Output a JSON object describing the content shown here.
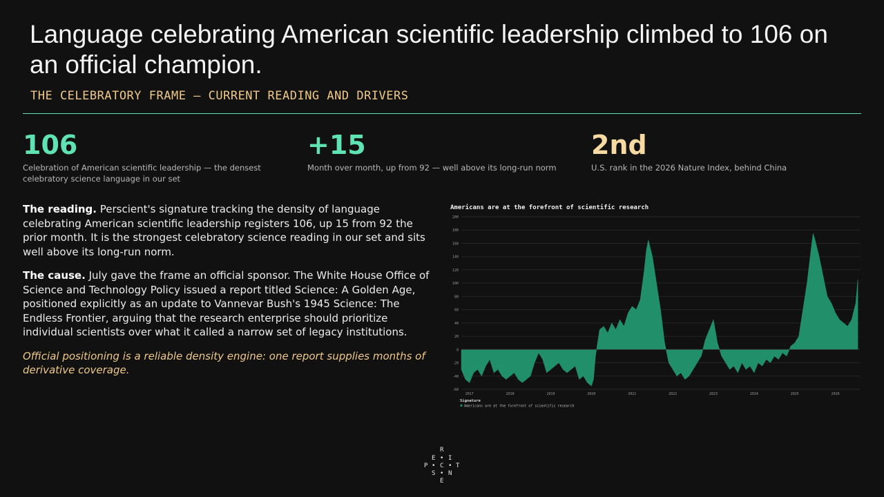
{
  "header": {
    "title": "Language celebrating American scientific leadership climbed to 106 on an official champion.",
    "subtitle": "THE CELEBRATORY FRAME — CURRENT READING AND DRIVERS"
  },
  "stats": [
    {
      "value": "106",
      "description": "Celebration of American scientific leadership — the densest celebratory science language in our set",
      "color": "#5fe3b3"
    },
    {
      "value": "+15",
      "description": "Month over month, up from 92 — well above its long-run norm",
      "color": "#5fe3b3"
    },
    {
      "value": "2nd",
      "description": "U.S. rank in the 2026 Nature Index, behind China",
      "color": "#f7d9a2"
    }
  ],
  "body": {
    "p1_lead": "The reading.",
    "p1_text": " Perscient's signature tracking the density of language celebrating American scientific leadership registers 106, up 15 from 92 the prior month. It is the strongest celebratory science reading in our set and sits well above its long-run norm.",
    "p2_lead": "The cause.",
    "p2_text": " July gave the frame an official sponsor. The White House Office of Science and Technology Policy issued a report titled Science: A Golden Age, positioned explicitly as an update to Vannevar Bush's 1945 Science: The Endless Frontier, arguing that the research enterprise should prioritize individual scientists over what it called a narrow set of legacy institutions.",
    "kicker": "Official positioning is a reliable density engine: one report supplies months of derivative coverage."
  },
  "chart_data": {
    "type": "area",
    "title": "Americans are at the forefront of scientific research",
    "xlabel": "",
    "ylabel": "",
    "ylim": [
      -60,
      200
    ],
    "yticks": [
      -60,
      -40,
      -20,
      0,
      20,
      40,
      60,
      80,
      100,
      120,
      140,
      160,
      180,
      200
    ],
    "xlim": [
      2016.8,
      2026.6
    ],
    "xticks": [
      "2017",
      "2018",
      "2019",
      "2020",
      "2021",
      "2022",
      "2023",
      "2024",
      "2025",
      "2026"
    ],
    "grid": true,
    "color": "#21906a",
    "legend_title": "Signature",
    "legend_placement": "bottom-left",
    "series": [
      {
        "name": "Americans are at the forefront of scientific research",
        "x": [
          2016.8,
          2016.9,
          2017.0,
          2017.1,
          2017.2,
          2017.3,
          2017.4,
          2017.5,
          2017.6,
          2017.7,
          2017.8,
          2017.9,
          2018.0,
          2018.1,
          2018.2,
          2018.3,
          2018.4,
          2018.5,
          2018.6,
          2018.7,
          2018.8,
          2018.9,
          2019.0,
          2019.1,
          2019.2,
          2019.3,
          2019.4,
          2019.5,
          2019.6,
          2019.7,
          2019.8,
          2019.9,
          2020.0,
          2020.05,
          2020.1,
          2020.2,
          2020.3,
          2020.4,
          2020.5,
          2020.6,
          2020.7,
          2020.8,
          2020.9,
          2021.0,
          2021.1,
          2021.2,
          2021.3,
          2021.35,
          2021.4,
          2021.5,
          2021.6,
          2021.7,
          2021.8,
          2021.9,
          2022.0,
          2022.1,
          2022.2,
          2022.3,
          2022.4,
          2022.5,
          2022.6,
          2022.7,
          2022.8,
          2022.9,
          2023.0,
          2023.1,
          2023.2,
          2023.3,
          2023.4,
          2023.5,
          2023.6,
          2023.7,
          2023.8,
          2023.9,
          2024.0,
          2024.1,
          2024.2,
          2024.3,
          2024.4,
          2024.5,
          2024.6,
          2024.7,
          2024.8,
          2024.9,
          2025.0,
          2025.1,
          2025.2,
          2025.3,
          2025.4,
          2025.45,
          2025.5,
          2025.6,
          2025.7,
          2025.8,
          2025.9,
          2026.0,
          2026.1,
          2026.2,
          2026.3,
          2026.4,
          2026.5,
          2026.55
        ],
        "values": [
          -30,
          -45,
          -50,
          -35,
          -30,
          -40,
          -25,
          -15,
          -35,
          -30,
          -40,
          -45,
          -40,
          -35,
          -45,
          -50,
          -45,
          -40,
          -20,
          -5,
          -15,
          -35,
          -30,
          -25,
          -20,
          -30,
          -35,
          -30,
          -25,
          -45,
          -40,
          -50,
          -55,
          -45,
          -10,
          30,
          35,
          25,
          40,
          30,
          45,
          35,
          55,
          65,
          60,
          75,
          120,
          150,
          165,
          140,
          100,
          60,
          10,
          -20,
          -30,
          -40,
          -35,
          -45,
          -40,
          -30,
          -20,
          -10,
          15,
          30,
          45,
          10,
          -10,
          -20,
          -30,
          -25,
          -35,
          -20,
          -30,
          -25,
          -35,
          -20,
          -25,
          -15,
          -20,
          -10,
          -15,
          -5,
          -10,
          5,
          10,
          20,
          60,
          100,
          150,
          175,
          165,
          140,
          110,
          80,
          70,
          55,
          45,
          40,
          35,
          45,
          70,
          105
        ]
      }
    ]
  },
  "logo": {
    "letters": [
      "R",
      "E",
      "I",
      "P",
      "C",
      "T",
      "S",
      "N",
      "E"
    ],
    "dots": [
      "•",
      "•",
      "•",
      "•"
    ]
  }
}
